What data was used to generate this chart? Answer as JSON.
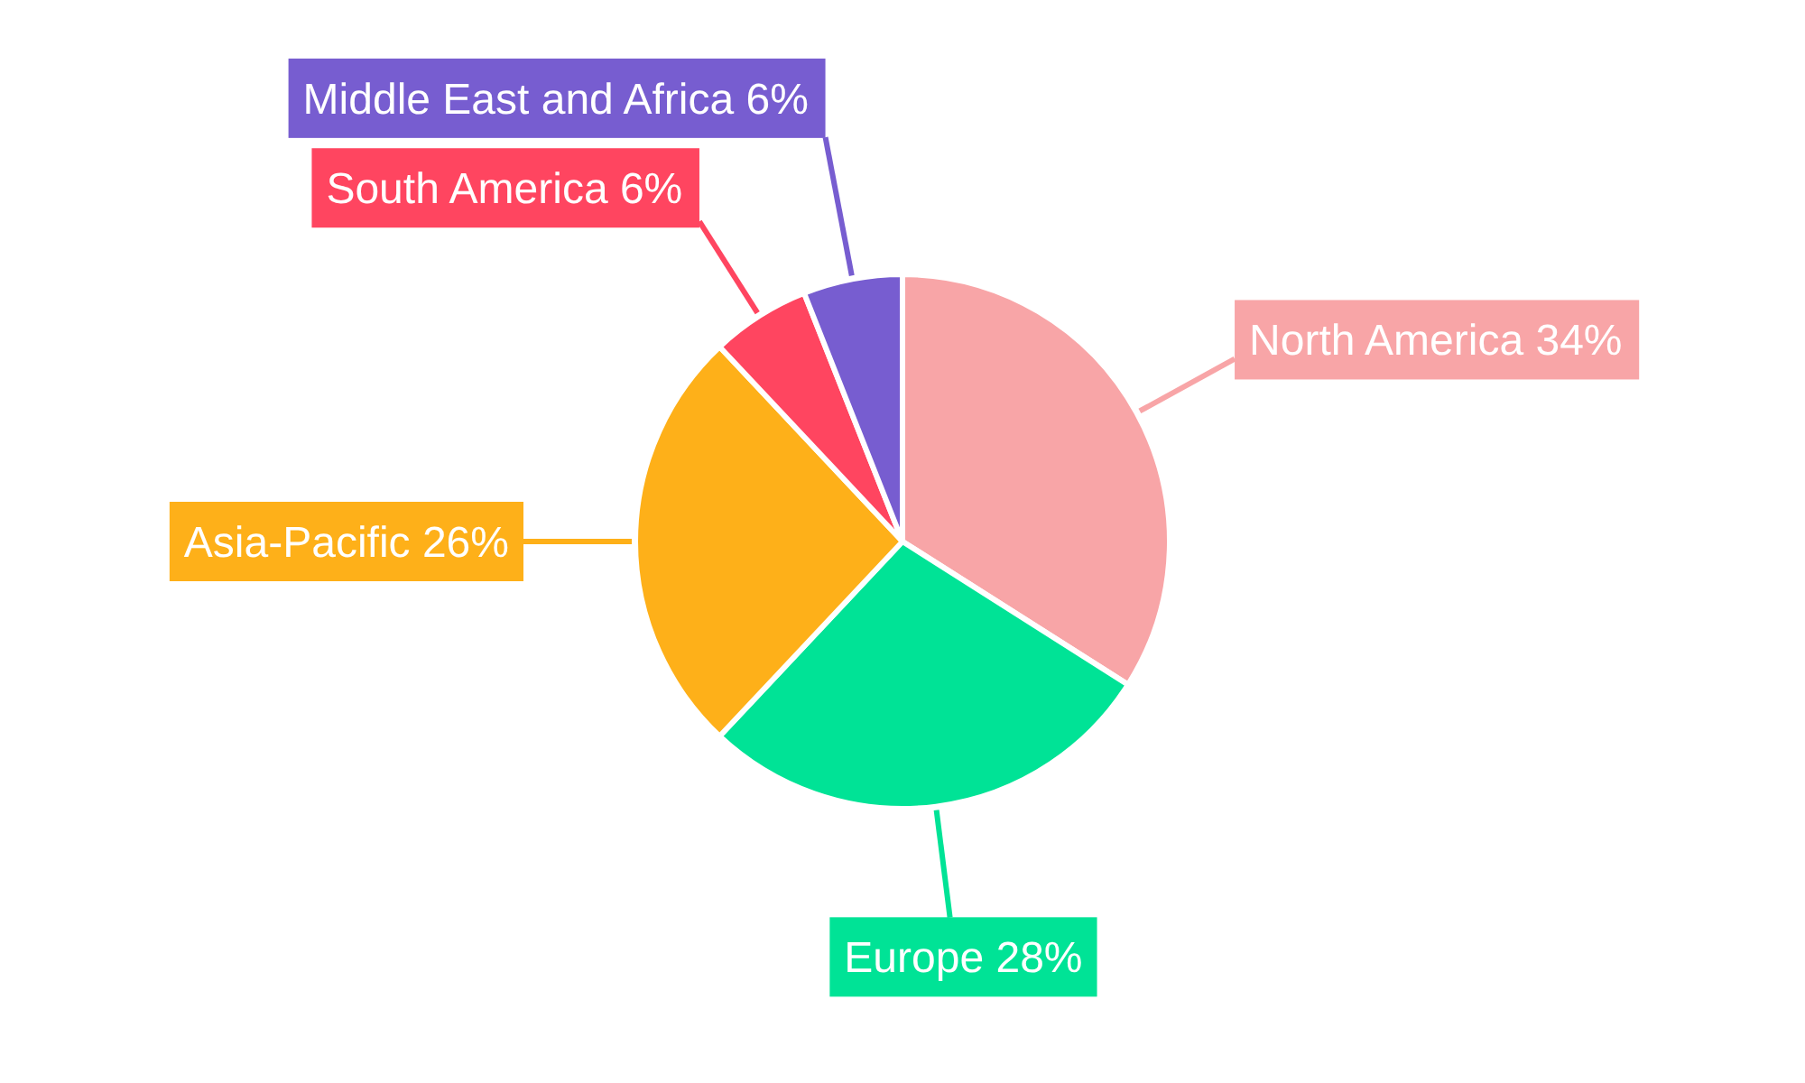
{
  "chart_data": {
    "type": "pie",
    "categories": [
      "North America",
      "Europe",
      "Asia-Pacific",
      "South America",
      "Middle East and Africa"
    ],
    "values": [
      34,
      28,
      26,
      6,
      6
    ],
    "value_labels": [
      "34%",
      "28%",
      "26%",
      "6%",
      "6%"
    ],
    "colors": [
      "#f8a5a7",
      "#00e396",
      "#feb019",
      "#ff4560",
      "#775dd0"
    ]
  }
}
